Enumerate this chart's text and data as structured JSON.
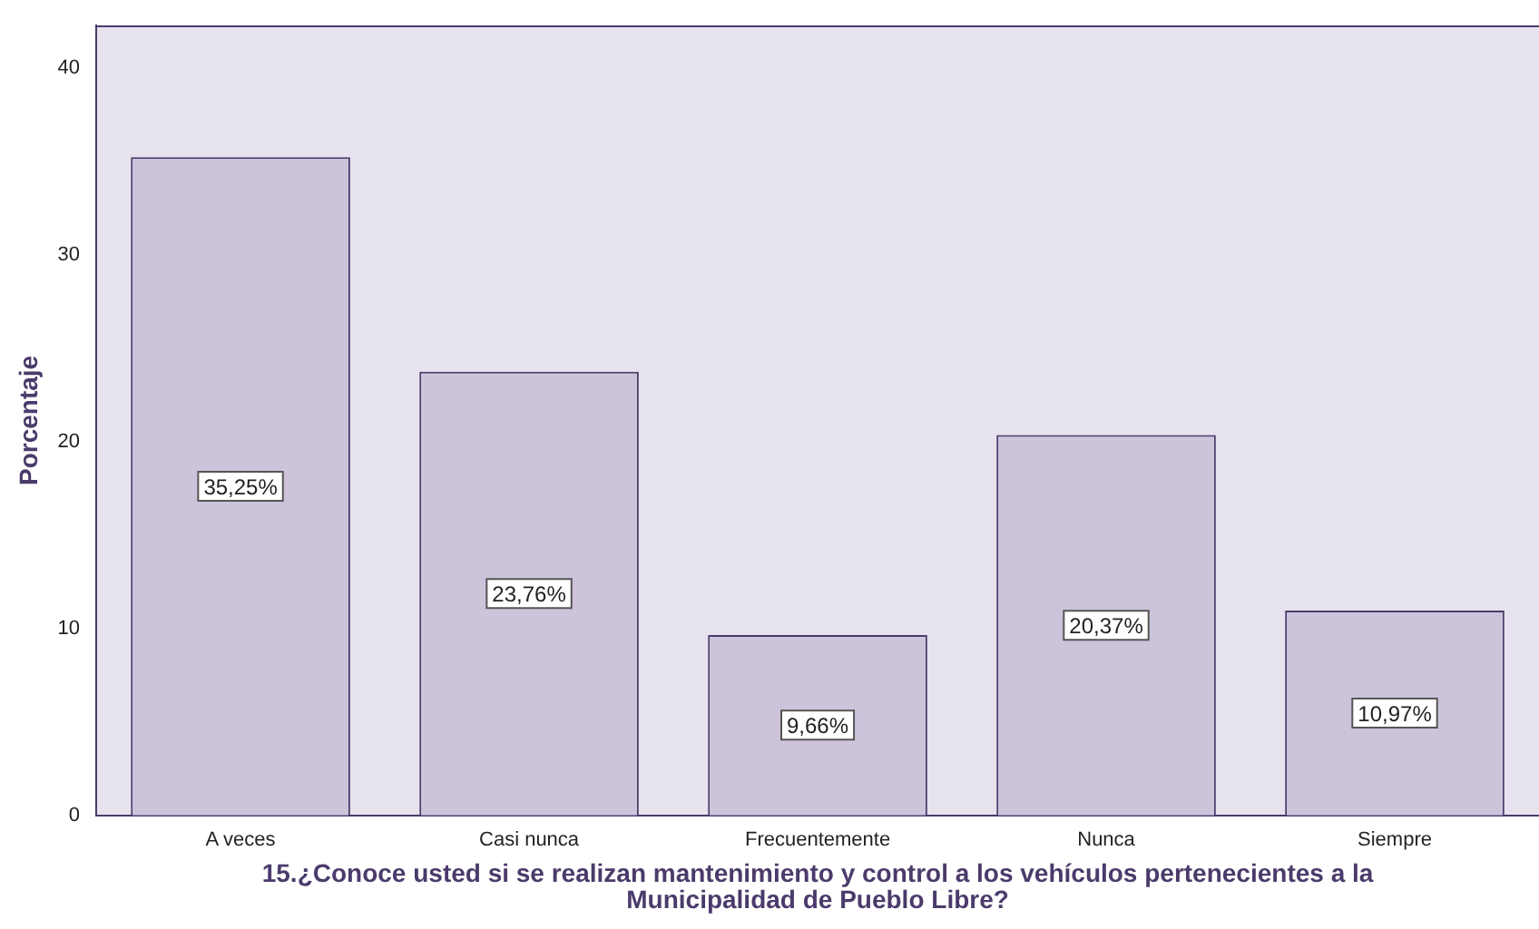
{
  "chart_data": {
    "type": "bar",
    "xlabel": "15.¿Conoce usted si se realizan mantenimiento y control a los vehículos pertenecientes a la Municipalidad de Pueblo Libre?",
    "ylabel": "Porcentaje",
    "categories": [
      "A veces",
      "Casi nunca",
      "Frecuentemente",
      "Nunca",
      "Siempre"
    ],
    "values": [
      35.25,
      23.76,
      9.66,
      20.37,
      10.97
    ],
    "value_labels": [
      "35,25%",
      "23,76%",
      "9,66%",
      "20,37%",
      "10,97%"
    ],
    "color": "#cdc3db",
    "ylim": [
      0,
      42.3
    ],
    "yticks": [
      0,
      10,
      20,
      30,
      40
    ],
    "grid": false,
    "legend": false
  }
}
